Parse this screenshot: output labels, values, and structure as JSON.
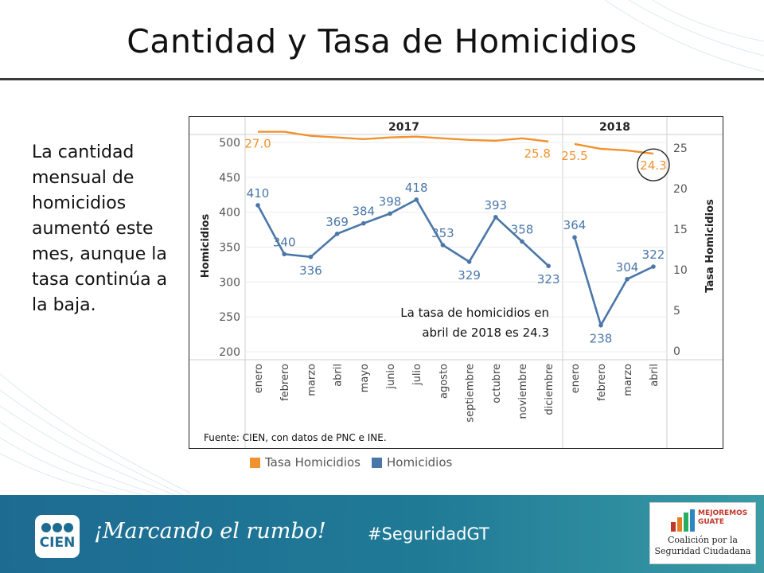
{
  "page": {
    "title": "Cantidad y Tasa de Homicidios",
    "side_text": "La cantidad mensual de homicidios aumentó este mes, aunque la tasa continúa a la baja."
  },
  "chart_data": {
    "type": "line",
    "years": [
      "2017",
      "2018"
    ],
    "categories": [
      "enero",
      "febrero",
      "marzo",
      "abril",
      "mayo",
      "junio",
      "julio",
      "agosto",
      "septiembre",
      "octubre",
      "noviembre",
      "diciembre",
      "enero",
      "febrero",
      "marzo",
      "abril"
    ],
    "series": [
      {
        "name": "Homicidios",
        "axis": "left",
        "color": "#4a77a8",
        "values": [
          410,
          340,
          336,
          369,
          384,
          398,
          418,
          353,
          329,
          393,
          358,
          323,
          364,
          238,
          304,
          322
        ],
        "labels": [
          "410",
          "340",
          "336",
          "369",
          "384",
          "398",
          "418",
          "353",
          "329",
          "393",
          "358",
          "323",
          "364",
          "238",
          "304",
          "322"
        ]
      },
      {
        "name": "Tasa Homicidios",
        "axis": "right",
        "color": "#f0922e",
        "values": [
          27.0,
          27.0,
          26.5,
          26.3,
          26.1,
          26.3,
          26.4,
          26.2,
          26.0,
          25.9,
          26.2,
          25.8,
          25.5,
          24.9,
          24.7,
          24.3
        ],
        "labels": [
          "27.0",
          "",
          "",
          "",
          "",
          "",
          "",
          "",
          "",
          "",
          "",
          "25.8",
          "25.5",
          "",
          "",
          "24.3"
        ]
      }
    ],
    "ylabel_left": "Homicidios",
    "ylabel_right": "Tasa Homicidios",
    "ylim_left": [
      200,
      500
    ],
    "yticks_left": [
      200,
      250,
      300,
      350,
      400,
      450,
      500
    ],
    "ylim_right": [
      0,
      27.3
    ],
    "yticks_right": [
      0,
      5,
      10,
      15,
      20,
      25
    ],
    "annotation": "La tasa de homicidios en abril de 2018 es 24.3",
    "annotation_lines": [
      "La tasa de homicidios en",
      "abril de 2018 es 24.3"
    ],
    "source": "Fuente: CIEN, con datos de PNC e INE.",
    "legend": [
      "Tasa Homicidios",
      "Homicidios"
    ],
    "legend_position": "bottom-left"
  },
  "footer": {
    "logo_text": "CIEN",
    "slogan": "¡Marcando el rumbo!",
    "hashtag": "#SeguridadGT",
    "partner_top": "MEJOREMOS GUATE",
    "partner_bottom": "Coalición por la Seguridad Ciudadana"
  },
  "colors": {
    "homicidios": "#4a77a8",
    "tasa": "#f0922e",
    "footer": "#1e6b92"
  }
}
